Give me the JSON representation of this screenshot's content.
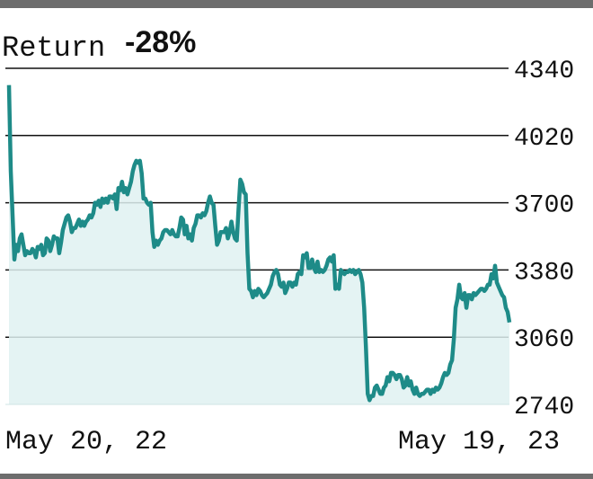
{
  "chart_data": {
    "type": "area",
    "return_label": "Return",
    "return_value": "-28%",
    "x_start_label": "May 20, 22",
    "x_end_label": "May 19, 23",
    "y_ticks": [
      "4340",
      "4020",
      "3700",
      "3380",
      "3060",
      "2740"
    ],
    "ylim": [
      2740,
      4340
    ],
    "grid": true,
    "line_color": "#1e8b88",
    "fill_color": "#dff1f1",
    "frame_color": "#6d6d6d",
    "series": [
      {
        "values": [
          4260,
          3850,
          3640,
          3430,
          3500,
          3470,
          3530,
          3550,
          3500,
          3450,
          3470,
          3460,
          3460,
          3480,
          3470,
          3440,
          3490,
          3480,
          3500,
          3450,
          3460,
          3530,
          3520,
          3470,
          3500,
          3540,
          3530,
          3530,
          3460,
          3510,
          3570,
          3600,
          3630,
          3640,
          3610,
          3560,
          3580,
          3580,
          3600,
          3620,
          3590,
          3610,
          3590,
          3610,
          3620,
          3640,
          3630,
          3650,
          3700,
          3690,
          3710,
          3680,
          3720,
          3700,
          3720,
          3700,
          3730,
          3730,
          3720,
          3740,
          3670,
          3770,
          3760,
          3800,
          3750,
          3770,
          3740,
          3770,
          3800,
          3850,
          3880,
          3900,
          3890,
          3900,
          3840,
          3720,
          3720,
          3700,
          3690,
          3700,
          3560,
          3490,
          3520,
          3500,
          3520,
          3530,
          3560,
          3570,
          3570,
          3560,
          3550,
          3570,
          3550,
          3540,
          3540,
          3580,
          3630,
          3620,
          3550,
          3590,
          3530,
          3550,
          3520,
          3580,
          3600,
          3640,
          3640,
          3630,
          3650,
          3640,
          3660,
          3700,
          3730,
          3700,
          3690,
          3590,
          3500,
          3520,
          3560,
          3560,
          3560,
          3580,
          3530,
          3560,
          3610,
          3560,
          3530,
          3520,
          3670,
          3810,
          3790,
          3750,
          3740,
          3460,
          3290,
          3280,
          3250,
          3280,
          3260,
          3290,
          3280,
          3260,
          3250,
          3260,
          3270,
          3290,
          3310,
          3350,
          3370,
          3380,
          3360,
          3310,
          3300,
          3320,
          3270,
          3290,
          3320,
          3320,
          3300,
          3320,
          3310,
          3360,
          3370,
          3360,
          3450,
          3440,
          3460,
          3390,
          3390,
          3430,
          3390,
          3370,
          3420,
          3370,
          3380,
          3370,
          3380,
          3400,
          3430,
          3440,
          3420,
          3450,
          3290,
          3310,
          3290,
          3380,
          3370,
          3360,
          3370,
          3370,
          3380,
          3370,
          3380,
          3360,
          3370,
          3380,
          3360,
          3320,
          3200,
          3010,
          2790,
          2760,
          2780,
          2780,
          2820,
          2830,
          2810,
          2790,
          2790,
          2820,
          2830,
          2870,
          2850,
          2890,
          2890,
          2880,
          2860,
          2880,
          2880,
          2860,
          2820,
          2830,
          2870,
          2830,
          2850,
          2810,
          2790,
          2820,
          2790,
          2780,
          2790,
          2790,
          2800,
          2810,
          2810,
          2790,
          2810,
          2800,
          2820,
          2810,
          2820,
          2840,
          2870,
          2890,
          2880,
          2890,
          2930,
          2950,
          3050,
          3200,
          3240,
          3310,
          3250,
          3240,
          3270,
          3200,
          3260,
          3260,
          3240,
          3270,
          3260,
          3270,
          3280,
          3290,
          3290,
          3280,
          3290,
          3310,
          3310,
          3360,
          3340,
          3400,
          3320,
          3300,
          3280,
          3260,
          3250,
          3200,
          3180,
          3130
        ]
      }
    ]
  }
}
